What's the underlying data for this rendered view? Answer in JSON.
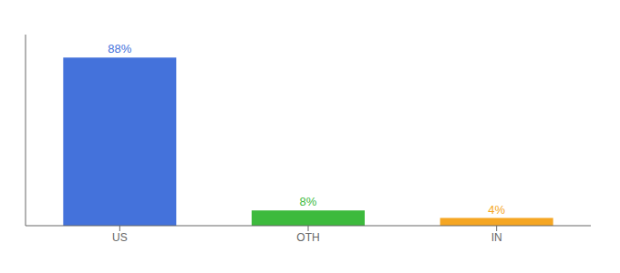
{
  "chart_data": {
    "type": "bar",
    "categories": [
      "US",
      "OTH",
      "IN"
    ],
    "values": [
      88,
      8,
      4
    ],
    "value_labels": [
      "88%",
      "8%",
      "4%"
    ],
    "colors": [
      "#4472db",
      "#3dba3d",
      "#f5a623"
    ],
    "ylim": [
      0,
      100
    ],
    "data_labels": true,
    "tick_labels": "x",
    "grid": false
  }
}
